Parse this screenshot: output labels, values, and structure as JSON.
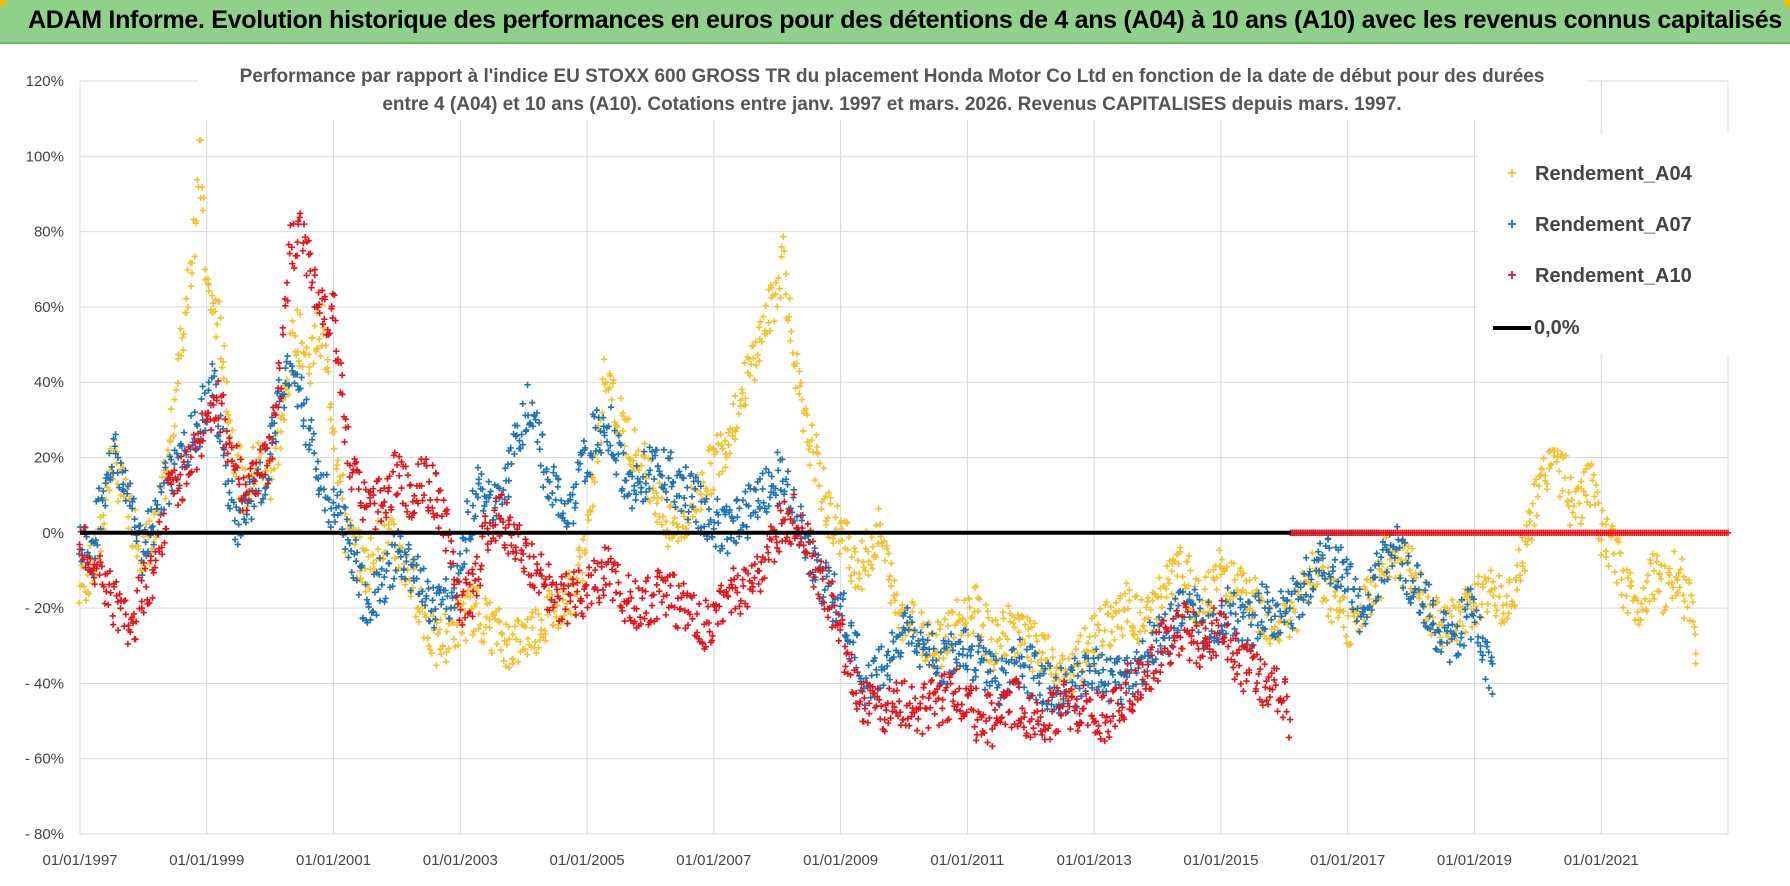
{
  "banner": {
    "title": "ADAM Informe. Evolution historique des performances en euros pour des détentions de 4 ans (A04) à 10 ans (A10) avec les revenus connus capitalisés"
  },
  "chart_data": {
    "type": "scatter",
    "title_line1": "Performance par rapport à l'indice EU STOXX 600 GROSS TR  du placement Honda Motor Co Ltd en fonction de la date de début pour des durées",
    "title_line2": "entre 4 (A04) et 10 ans (A10).  Cotations entre janv. 1997 et mars. 2026.  Revenus CAPITALISES depuis mars. 1997.",
    "x_range": [
      1997.0,
      2023.0
    ],
    "ylim": [
      -80,
      120
    ],
    "y_ticks": [
      {
        "value": 120,
        "label": "120%"
      },
      {
        "value": 100,
        "label": "100%"
      },
      {
        "value": 80,
        "label": "80%"
      },
      {
        "value": 60,
        "label": "60%"
      },
      {
        "value": 40,
        "label": "40%"
      },
      {
        "value": 20,
        "label": "20%"
      },
      {
        "value": 0,
        "label": "0%"
      },
      {
        "value": -20,
        "label": "- 20%"
      },
      {
        "value": -40,
        "label": "- 40%"
      },
      {
        "value": -60,
        "label": "- 60%"
      },
      {
        "value": -80,
        "label": "- 80%"
      }
    ],
    "x_ticks": [
      {
        "value": 1997.0,
        "label": "01/01/1997"
      },
      {
        "value": 1999.0,
        "label": "01/01/1999"
      },
      {
        "value": 2001.0,
        "label": "01/01/2001"
      },
      {
        "value": 2003.0,
        "label": "01/01/2003"
      },
      {
        "value": 2005.0,
        "label": "01/01/2005"
      },
      {
        "value": 2007.0,
        "label": "01/01/2007"
      },
      {
        "value": 2009.0,
        "label": "01/01/2009"
      },
      {
        "value": 2011.0,
        "label": "01/01/2011"
      },
      {
        "value": 2013.0,
        "label": "01/01/2013"
      },
      {
        "value": 2015.0,
        "label": "01/01/2015"
      },
      {
        "value": 2017.0,
        "label": "01/01/2017"
      },
      {
        "value": 2019.0,
        "label": "01/01/2019"
      },
      {
        "value": 2021.0,
        "label": "01/01/2021"
      }
    ],
    "legend_position": "top-right",
    "series": [
      {
        "name": "Rendement_A04",
        "color": "#f5c12e",
        "end_x": 2022.5,
        "points": [
          [
            1997.0,
            -15
          ],
          [
            1997.3,
            -5
          ],
          [
            1997.5,
            20
          ],
          [
            1997.7,
            10
          ],
          [
            1998.0,
            -5
          ],
          [
            1998.2,
            0
          ],
          [
            1998.4,
            20
          ],
          [
            1998.6,
            50
          ],
          [
            1998.8,
            80
          ],
          [
            1998.9,
            100
          ],
          [
            1999.0,
            65
          ],
          [
            1999.2,
            55
          ],
          [
            1999.4,
            25
          ],
          [
            1999.6,
            10
          ],
          [
            1999.8,
            20
          ],
          [
            2000.0,
            15
          ],
          [
            2000.2,
            30
          ],
          [
            2000.4,
            55
          ],
          [
            2000.6,
            45
          ],
          [
            2000.8,
            55
          ],
          [
            2001.0,
            30
          ],
          [
            2001.2,
            0
          ],
          [
            2001.5,
            -10
          ],
          [
            2001.8,
            0
          ],
          [
            2002.0,
            -5
          ],
          [
            2002.3,
            -15
          ],
          [
            2002.6,
            -30
          ],
          [
            2002.9,
            -25
          ],
          [
            2003.2,
            -20
          ],
          [
            2003.5,
            -25
          ],
          [
            2003.8,
            -30
          ],
          [
            2004.2,
            -25
          ],
          [
            2004.5,
            -20
          ],
          [
            2004.8,
            -15
          ],
          [
            2005.0,
            0
          ],
          [
            2005.2,
            25
          ],
          [
            2005.3,
            45
          ],
          [
            2005.5,
            30
          ],
          [
            2005.8,
            20
          ],
          [
            2006.0,
            15
          ],
          [
            2006.3,
            0
          ],
          [
            2006.6,
            5
          ],
          [
            2006.9,
            15
          ],
          [
            2007.2,
            25
          ],
          [
            2007.5,
            40
          ],
          [
            2007.8,
            55
          ],
          [
            2008.0,
            65
          ],
          [
            2008.1,
            75
          ],
          [
            2008.2,
            55
          ],
          [
            2008.4,
            30
          ],
          [
            2008.6,
            20
          ],
          [
            2008.8,
            5
          ],
          [
            2009.0,
            0
          ],
          [
            2009.3,
            -10
          ],
          [
            2009.6,
            0
          ],
          [
            2009.9,
            -20
          ],
          [
            2010.2,
            -25
          ],
          [
            2010.5,
            -30
          ],
          [
            2010.8,
            -25
          ],
          [
            2011.1,
            -20
          ],
          [
            2011.4,
            -30
          ],
          [
            2011.7,
            -25
          ],
          [
            2012.0,
            -30
          ],
          [
            2012.3,
            -35
          ],
          [
            2012.6,
            -40
          ],
          [
            2012.9,
            -30
          ],
          [
            2013.2,
            -25
          ],
          [
            2013.5,
            -20
          ],
          [
            2013.8,
            -25
          ],
          [
            2014.1,
            -15
          ],
          [
            2014.4,
            -10
          ],
          [
            2014.7,
            -20
          ],
          [
            2015.0,
            -10
          ],
          [
            2015.3,
            -15
          ],
          [
            2015.6,
            -20
          ],
          [
            2015.9,
            -25
          ],
          [
            2016.2,
            -20
          ],
          [
            2016.5,
            -10
          ],
          [
            2016.8,
            -20
          ],
          [
            2017.1,
            -25
          ],
          [
            2017.4,
            -15
          ],
          [
            2017.7,
            -5
          ],
          [
            2018.0,
            -10
          ],
          [
            2018.3,
            -20
          ],
          [
            2018.6,
            -25
          ],
          [
            2018.9,
            -20
          ],
          [
            2019.2,
            -15
          ],
          [
            2019.5,
            -20
          ],
          [
            2019.8,
            -5
          ],
          [
            2020.0,
            10
          ],
          [
            2020.2,
            20
          ],
          [
            2020.4,
            15
          ],
          [
            2020.6,
            5
          ],
          [
            2020.8,
            15
          ],
          [
            2021.0,
            0
          ],
          [
            2021.2,
            -5
          ],
          [
            2021.4,
            -15
          ],
          [
            2021.6,
            -20
          ],
          [
            2021.8,
            -10
          ],
          [
            2022.0,
            -15
          ],
          [
            2022.2,
            -10
          ],
          [
            2022.4,
            -20
          ],
          [
            2022.5,
            -30
          ]
        ]
      },
      {
        "name": "Rendement_A07",
        "color": "#1f73b8",
        "end_x": 2019.3,
        "points": [
          [
            1997.0,
            0
          ],
          [
            1997.2,
            -5
          ],
          [
            1997.4,
            15
          ],
          [
            1997.6,
            20
          ],
          [
            1997.8,
            5
          ],
          [
            1998.0,
            -5
          ],
          [
            1998.3,
            10
          ],
          [
            1998.6,
            20
          ],
          [
            1998.9,
            30
          ],
          [
            1999.1,
            40
          ],
          [
            1999.3,
            15
          ],
          [
            1999.5,
            0
          ],
          [
            1999.7,
            10
          ],
          [
            1999.9,
            15
          ],
          [
            2000.1,
            30
          ],
          [
            2000.3,
            45
          ],
          [
            2000.5,
            35
          ],
          [
            2000.7,
            20
          ],
          [
            2000.9,
            10
          ],
          [
            2001.1,
            5
          ],
          [
            2001.3,
            -5
          ],
          [
            2001.5,
            -20
          ],
          [
            2001.7,
            -15
          ],
          [
            2002.0,
            -5
          ],
          [
            2002.3,
            -10
          ],
          [
            2002.6,
            -20
          ],
          [
            2002.9,
            -15
          ],
          [
            2003.1,
            0
          ],
          [
            2003.3,
            15
          ],
          [
            2003.5,
            5
          ],
          [
            2003.7,
            10
          ],
          [
            2003.9,
            25
          ],
          [
            2004.1,
            35
          ],
          [
            2004.3,
            20
          ],
          [
            2004.5,
            10
          ],
          [
            2004.7,
            5
          ],
          [
            2004.9,
            15
          ],
          [
            2005.1,
            25
          ],
          [
            2005.3,
            30
          ],
          [
            2005.5,
            20
          ],
          [
            2005.7,
            10
          ],
          [
            2005.9,
            15
          ],
          [
            2006.1,
            20
          ],
          [
            2006.3,
            15
          ],
          [
            2006.6,
            10
          ],
          [
            2006.9,
            5
          ],
          [
            2007.2,
            0
          ],
          [
            2007.5,
            5
          ],
          [
            2007.8,
            10
          ],
          [
            2008.0,
            15
          ],
          [
            2008.2,
            10
          ],
          [
            2008.4,
            0
          ],
          [
            2008.6,
            -10
          ],
          [
            2008.8,
            -15
          ],
          [
            2009.0,
            -20
          ],
          [
            2009.2,
            -30
          ],
          [
            2009.4,
            -40
          ],
          [
            2009.7,
            -35
          ],
          [
            2010.0,
            -25
          ],
          [
            2010.3,
            -30
          ],
          [
            2010.6,
            -35
          ],
          [
            2010.9,
            -30
          ],
          [
            2011.2,
            -35
          ],
          [
            2011.5,
            -40
          ],
          [
            2011.8,
            -35
          ],
          [
            2012.1,
            -38
          ],
          [
            2012.4,
            -42
          ],
          [
            2012.7,
            -40
          ],
          [
            2013.0,
            -35
          ],
          [
            2013.3,
            -40
          ],
          [
            2013.6,
            -38
          ],
          [
            2013.9,
            -30
          ],
          [
            2014.2,
            -25
          ],
          [
            2014.5,
            -20
          ],
          [
            2014.8,
            -25
          ],
          [
            2015.1,
            -20
          ],
          [
            2015.4,
            -25
          ],
          [
            2015.7,
            -20
          ],
          [
            2016.0,
            -22
          ],
          [
            2016.3,
            -15
          ],
          [
            2016.6,
            -5
          ],
          [
            2016.9,
            -10
          ],
          [
            2017.2,
            -20
          ],
          [
            2017.5,
            -10
          ],
          [
            2017.8,
            -5
          ],
          [
            2018.1,
            -15
          ],
          [
            2018.4,
            -25
          ],
          [
            2018.7,
            -30
          ],
          [
            2018.9,
            -20
          ],
          [
            2019.1,
            -30
          ],
          [
            2019.3,
            -40
          ]
        ]
      },
      {
        "name": "Rendement_A10",
        "color": "#e8141b",
        "end_x": 2016.1,
        "points": [
          [
            1997.0,
            0
          ],
          [
            1997.2,
            -10
          ],
          [
            1997.4,
            -15
          ],
          [
            1997.6,
            -20
          ],
          [
            1997.8,
            -25
          ],
          [
            1998.0,
            -15
          ],
          [
            1998.2,
            -10
          ],
          [
            1998.4,
            10
          ],
          [
            1998.6,
            15
          ],
          [
            1998.8,
            20
          ],
          [
            1999.0,
            30
          ],
          [
            1999.2,
            35
          ],
          [
            1999.4,
            20
          ],
          [
            1999.6,
            10
          ],
          [
            1999.8,
            15
          ],
          [
            2000.0,
            20
          ],
          [
            2000.2,
            45
          ],
          [
            2000.3,
            75
          ],
          [
            2000.5,
            80
          ],
          [
            2000.7,
            65
          ],
          [
            2000.9,
            55
          ],
          [
            2001.0,
            60
          ],
          [
            2001.2,
            25
          ],
          [
            2001.4,
            10
          ],
          [
            2001.6,
            5
          ],
          [
            2001.8,
            10
          ],
          [
            2002.0,
            15
          ],
          [
            2002.2,
            10
          ],
          [
            2002.4,
            15
          ],
          [
            2002.6,
            10
          ],
          [
            2002.8,
            0
          ],
          [
            2003.0,
            -20
          ],
          [
            2003.2,
            -15
          ],
          [
            2003.4,
            0
          ],
          [
            2003.6,
            5
          ],
          [
            2003.8,
            0
          ],
          [
            2004.0,
            -5
          ],
          [
            2004.2,
            -10
          ],
          [
            2004.4,
            -15
          ],
          [
            2004.7,
            -18
          ],
          [
            2005.0,
            -15
          ],
          [
            2005.3,
            -10
          ],
          [
            2005.6,
            -18
          ],
          [
            2005.9,
            -20
          ],
          [
            2006.2,
            -15
          ],
          [
            2006.5,
            -20
          ],
          [
            2006.8,
            -25
          ],
          [
            2007.1,
            -20
          ],
          [
            2007.4,
            -15
          ],
          [
            2007.7,
            -10
          ],
          [
            2008.0,
            0
          ],
          [
            2008.3,
            5
          ],
          [
            2008.6,
            -10
          ],
          [
            2008.9,
            -20
          ],
          [
            2009.1,
            -35
          ],
          [
            2009.3,
            -45
          ],
          [
            2009.6,
            -48
          ],
          [
            2009.9,
            -45
          ],
          [
            2010.2,
            -48
          ],
          [
            2010.5,
            -45
          ],
          [
            2010.8,
            -42
          ],
          [
            2011.1,
            -48
          ],
          [
            2011.4,
            -50
          ],
          [
            2011.7,
            -45
          ],
          [
            2012.0,
            -48
          ],
          [
            2012.3,
            -50
          ],
          [
            2012.6,
            -45
          ],
          [
            2012.9,
            -48
          ],
          [
            2013.2,
            -50
          ],
          [
            2013.5,
            -42
          ],
          [
            2013.8,
            -38
          ],
          [
            2014.1,
            -30
          ],
          [
            2014.4,
            -25
          ],
          [
            2014.7,
            -30
          ],
          [
            2015.0,
            -25
          ],
          [
            2015.3,
            -35
          ],
          [
            2015.6,
            -38
          ],
          [
            2015.9,
            -42
          ],
          [
            2016.1,
            -48
          ]
        ]
      },
      {
        "name": "0,0%",
        "color": "#000000",
        "type": "line",
        "value": 0
      }
    ],
    "zero_segments": [
      {
        "series": "Rendement_A07",
        "from": 2016.1,
        "to": 2017.5,
        "value": 0,
        "color": "#1f73b8"
      },
      {
        "series": "Rendement_A10",
        "from": 2016.1,
        "to": 2023.0,
        "value": 0,
        "color": "#e8141b"
      }
    ]
  }
}
